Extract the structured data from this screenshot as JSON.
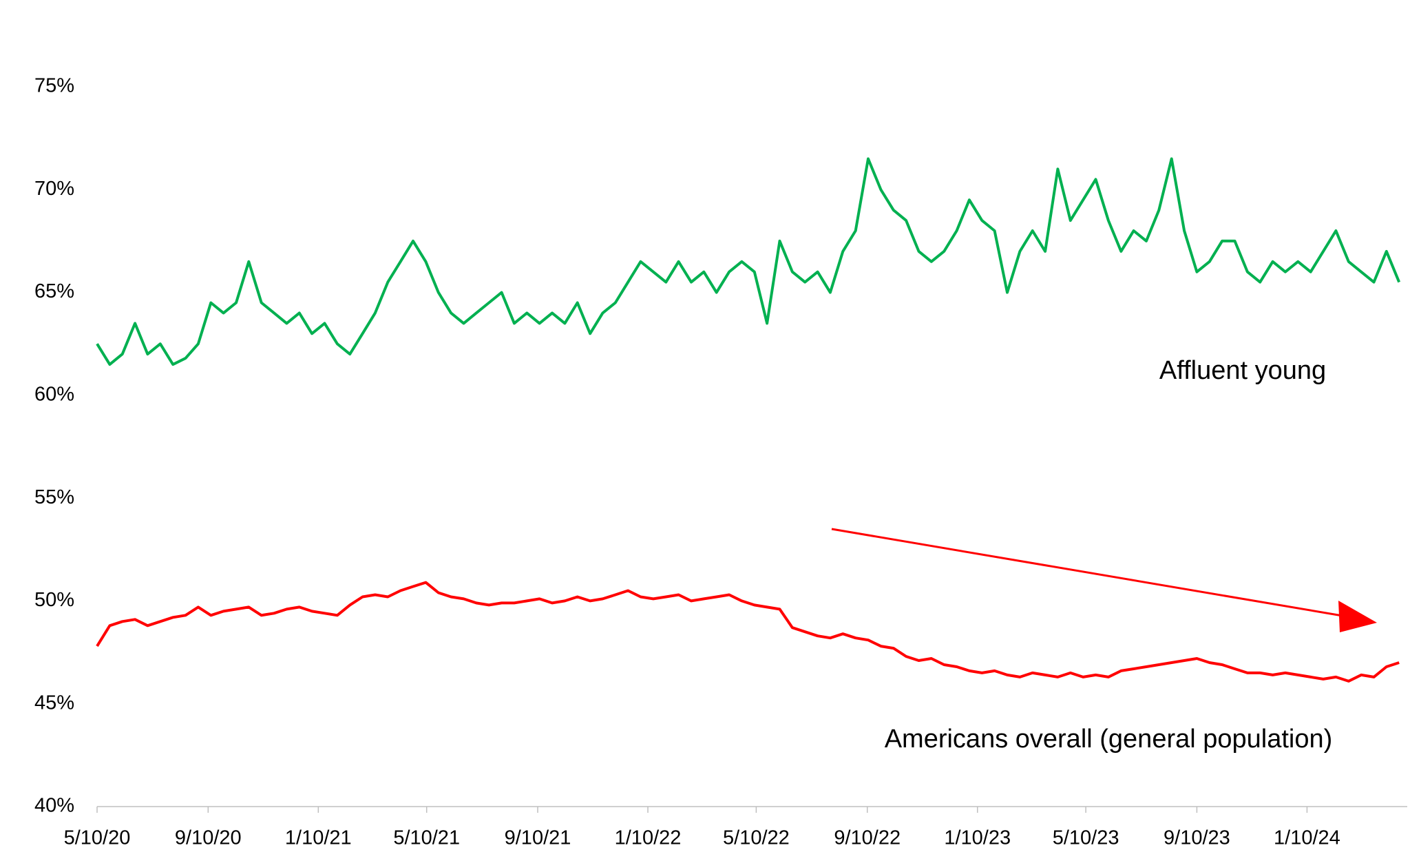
{
  "chart_data": {
    "type": "line",
    "x": [
      "5/10/20",
      "5/24/20",
      "6/7/20",
      "6/21/20",
      "7/5/20",
      "7/19/20",
      "8/2/20",
      "8/16/20",
      "8/30/20",
      "9/13/20",
      "9/27/20",
      "10/11/20",
      "10/25/20",
      "11/8/20",
      "11/22/20",
      "12/6/20",
      "12/20/20",
      "1/3/21",
      "1/17/21",
      "1/31/21",
      "2/14/21",
      "2/28/21",
      "3/14/21",
      "3/28/21",
      "4/11/21",
      "4/25/21",
      "5/9/21",
      "5/23/21",
      "6/6/21",
      "6/20/21",
      "7/4/21",
      "7/18/21",
      "8/1/21",
      "8/15/21",
      "8/29/21",
      "9/12/21",
      "9/26/21",
      "10/10/21",
      "10/24/21",
      "11/7/21",
      "11/21/21",
      "12/5/21",
      "12/19/21",
      "1/2/22",
      "1/16/22",
      "1/30/22",
      "2/13/22",
      "2/27/22",
      "3/13/22",
      "3/27/22",
      "4/10/22",
      "4/24/22",
      "5/8/22",
      "5/22/22",
      "6/5/22",
      "6/19/22",
      "7/3/22",
      "7/17/22",
      "7/31/22",
      "8/14/22",
      "8/28/22",
      "9/11/22",
      "9/25/22",
      "10/9/22",
      "10/23/22",
      "11/6/22",
      "11/20/22",
      "12/4/22",
      "12/18/22",
      "1/1/23",
      "1/15/23",
      "1/29/23",
      "2/12/23",
      "2/26/23",
      "3/12/23",
      "3/26/23",
      "4/9/23",
      "4/23/23",
      "5/7/23",
      "5/21/23",
      "6/4/23",
      "6/18/23",
      "7/2/23",
      "7/16/23",
      "7/30/23",
      "8/13/23",
      "8/27/23",
      "9/10/23",
      "9/24/23",
      "10/8/23",
      "10/22/23",
      "11/5/23",
      "11/19/23",
      "12/3/23",
      "12/17/23",
      "12/31/23",
      "1/14/24",
      "1/28/24",
      "2/11/24",
      "2/25/24",
      "3/10/24",
      "3/24/24",
      "4/7/24",
      "4/21/24"
    ],
    "series": [
      {
        "name": "Affluent young",
        "color": "#00b050",
        "values": [
          62.5,
          61.5,
          62,
          63.5,
          62,
          62.5,
          61.5,
          61.8,
          62.5,
          64.5,
          64,
          64.5,
          66.5,
          64.5,
          64,
          63.5,
          64,
          63,
          63.5,
          62.5,
          62,
          63,
          64,
          65.5,
          66.5,
          67.5,
          66.5,
          65,
          64,
          63.5,
          64,
          64.5,
          65,
          63.5,
          64,
          63.5,
          64,
          63.5,
          64.5,
          63,
          64,
          64.5,
          65.5,
          66.5,
          66,
          65.5,
          66.5,
          65.5,
          66,
          65,
          66,
          66.5,
          66,
          63.5,
          67.5,
          66,
          65.5,
          66,
          65,
          67,
          68,
          71.5,
          70,
          69,
          68.5,
          67,
          66.5,
          67,
          68,
          69.5,
          68.5,
          68,
          65,
          67,
          68,
          67,
          71,
          68.5,
          69.5,
          70.5,
          68.5,
          67,
          68,
          67.5,
          69,
          71.5,
          68,
          66,
          66.5,
          67.5,
          67.5,
          66,
          65.5,
          66.5,
          66,
          66.5,
          66,
          67,
          68,
          66.5,
          66,
          65.5,
          67,
          65.5
        ]
      },
      {
        "name": "Americans overall (general population)",
        "color": "#ff0000",
        "values": [
          47.8,
          48.8,
          49,
          49.1,
          48.8,
          49,
          49.2,
          49.3,
          49.7,
          49.3,
          49.5,
          49.6,
          49.7,
          49.3,
          49.4,
          49.6,
          49.7,
          49.5,
          49.4,
          49.3,
          49.8,
          50.2,
          50.3,
          50.2,
          50.5,
          50.7,
          50.9,
          50.4,
          50.2,
          50.1,
          49.9,
          49.8,
          49.9,
          49.9,
          50,
          50.1,
          49.9,
          50,
          50.2,
          50,
          50.1,
          50.3,
          50.5,
          50.2,
          50.1,
          50.2,
          50.3,
          50,
          50.1,
          50.2,
          50.3,
          50,
          49.8,
          49.7,
          49.6,
          48.7,
          48.5,
          48.3,
          48.2,
          48.4,
          48.2,
          48.1,
          47.8,
          47.7,
          47.3,
          47.1,
          47.2,
          46.9,
          46.8,
          46.6,
          46.5,
          46.6,
          46.4,
          46.3,
          46.5,
          46.4,
          46.3,
          46.5,
          46.3,
          46.4,
          46.3,
          46.6,
          46.7,
          46.8,
          46.9,
          47,
          47.1,
          47.2,
          47,
          46.9,
          46.7,
          46.5,
          46.5,
          46.4,
          46.5,
          46.4,
          46.3,
          46.2,
          46.3,
          46.1,
          46.4,
          46.3,
          46.8,
          47.0
        ]
      }
    ],
    "xlim": [
      "5/10/20",
      "4/30/24"
    ],
    "xticks": [
      "5/10/20",
      "9/10/20",
      "1/10/21",
      "5/10/21",
      "9/10/21",
      "1/10/22",
      "5/10/22",
      "9/10/22",
      "1/10/23",
      "5/10/23",
      "9/10/23",
      "1/10/24"
    ],
    "ylim": [
      40,
      75
    ],
    "yticks": [
      {
        "value": 40,
        "label": "40%"
      },
      {
        "value": 45,
        "label": "45%"
      },
      {
        "value": 50,
        "label": "50%"
      },
      {
        "value": 55,
        "label": "55%"
      },
      {
        "value": 60,
        "label": "60%"
      },
      {
        "value": 65,
        "label": "65%"
      },
      {
        "value": 70,
        "label": "70%"
      },
      {
        "value": 75,
        "label": "75%"
      }
    ],
    "grid": false
  }
}
